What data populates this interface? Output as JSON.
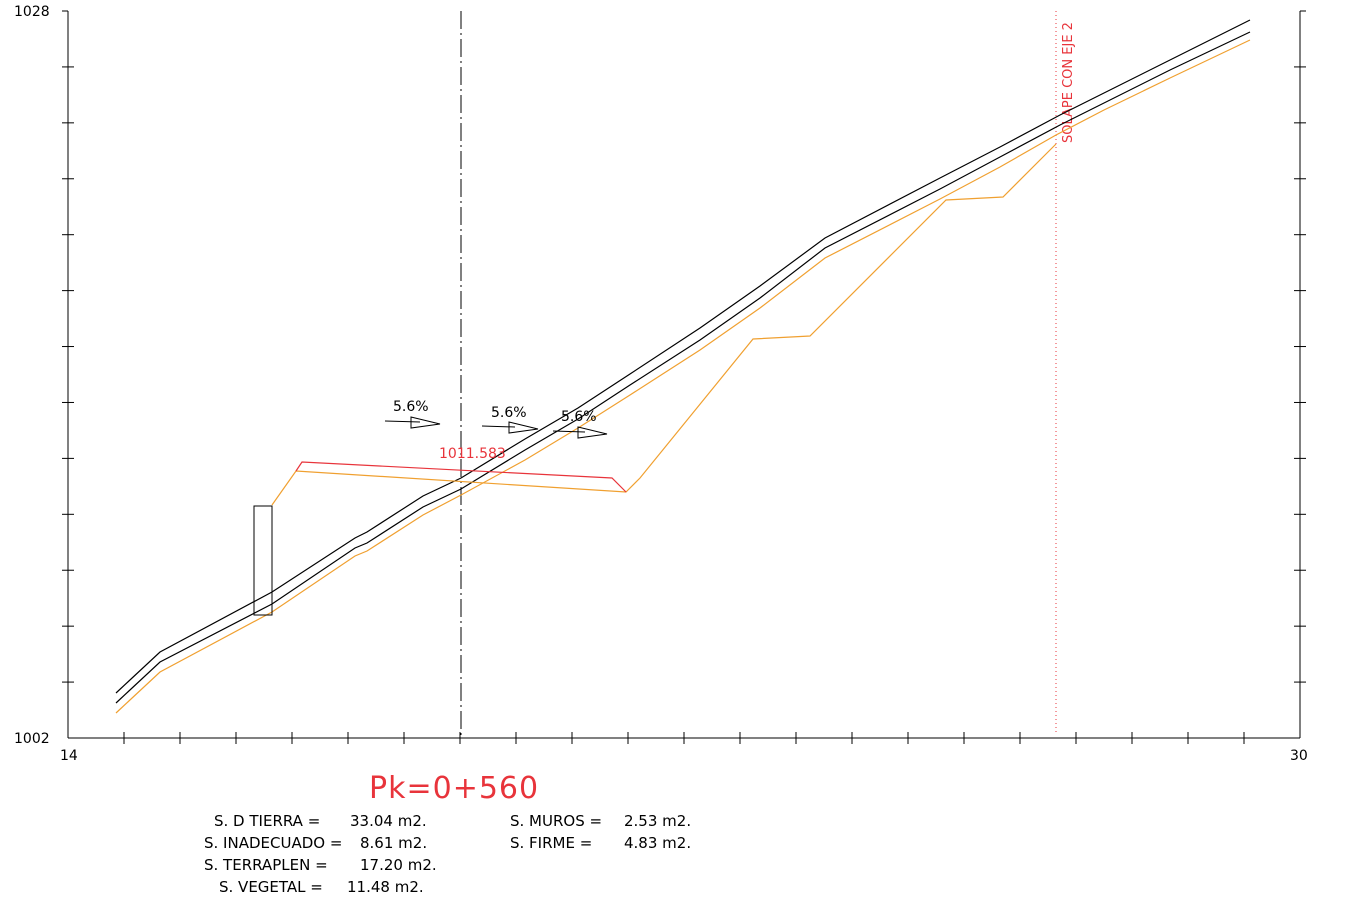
{
  "drawing": {
    "y_axis": {
      "min_label": "1002",
      "max_label": "1028",
      "min": 1002,
      "max": 1028
    },
    "x_axis": {
      "min_label": "14",
      "max_label": "30",
      "min": 14,
      "max": 30
    },
    "slope_labels": [
      "5.6%",
      "5.6%",
      "5.6%"
    ],
    "elevation_label": "1011.583",
    "overlap_label": "SOLAPE CON EJE 2",
    "pk_label": "Pk=0+560"
  },
  "areas": {
    "left": [
      {
        "label": "S. D TIERRA =",
        "value": "33.04 m2."
      },
      {
        "label": "S. INADECUADO =",
        "value": "8.61 m2."
      },
      {
        "label": "S. TERRAPLEN =",
        "value": "17.20 m2."
      },
      {
        "label": "S. VEGETAL =",
        "value": "11.48 m2."
      }
    ],
    "right": [
      {
        "label": "S. MUROS =",
        "value": "2.53 m2."
      },
      {
        "label": "S. FIRME =",
        "value": "4.83 m2."
      }
    ]
  },
  "colors": {
    "terrain": "#000000",
    "subgrade": "#f0a030",
    "design": "#e8343b",
    "axis": "#000000"
  }
}
